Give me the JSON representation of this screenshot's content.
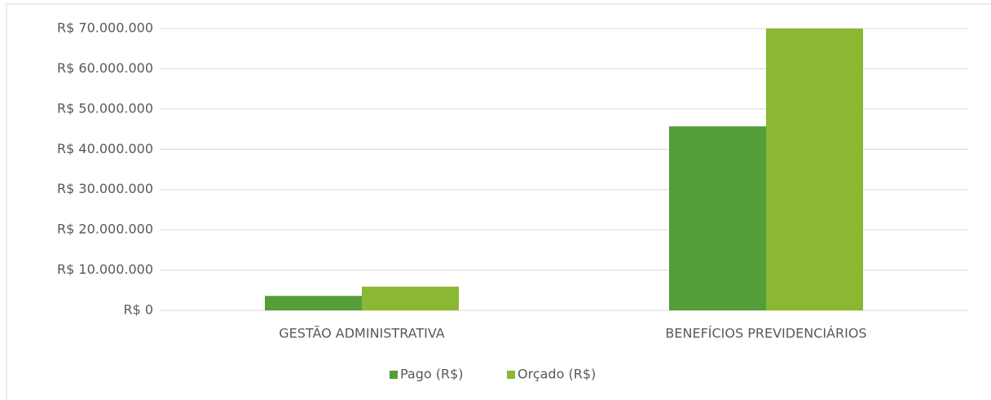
{
  "chart_data": {
    "type": "bar",
    "categories": [
      "GESTÃO ADMINISTRATIVA",
      "BENEFÍCIOS PREVIDENCIÁRIOS"
    ],
    "series": [
      {
        "name": "Pago (R$)",
        "color": "#549e39",
        "values": [
          3600000,
          45700000
        ]
      },
      {
        "name": "Orçado (R$)",
        "color": "#8ab833",
        "values": [
          5900000,
          70000000
        ]
      }
    ],
    "ylim": [
      0,
      70000000
    ],
    "yticks": [
      {
        "value": 0,
        "label": "R$ 0"
      },
      {
        "value": 10000000,
        "label": "R$ 10.000.000"
      },
      {
        "value": 20000000,
        "label": "R$ 20.000.000"
      },
      {
        "value": 30000000,
        "label": "R$ 30.000.000"
      },
      {
        "value": 40000000,
        "label": "R$ 40.000.000"
      },
      {
        "value": 50000000,
        "label": "R$ 50.000.000"
      },
      {
        "value": 60000000,
        "label": "R$ 60.000.000"
      },
      {
        "value": 70000000,
        "label": "R$ 70.000.000"
      }
    ],
    "grid": true,
    "legend": "bottom"
  }
}
